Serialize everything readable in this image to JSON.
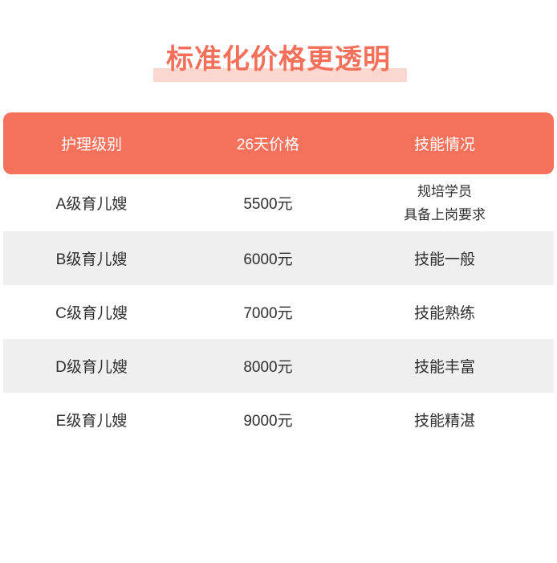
{
  "title": {
    "text": "标准化价格更透明"
  },
  "colors": {
    "accent": "#F5715C",
    "title_text": "#F4705B",
    "title_highlight": "#FAD7CF",
    "alt_row_background": "#F0EFEF",
    "header_text": "#FFFFFF",
    "body_text": "#2E2E2E"
  },
  "table": {
    "headers": {
      "level": "护理级别",
      "price": "26天价格",
      "skill": "技能情况"
    },
    "rows": [
      {
        "level": "A级育儿嫂",
        "price": "5500元",
        "skill": "规培学员",
        "skill_note": "具备上岗要求"
      },
      {
        "level": "B级育儿嫂",
        "price": "6000元",
        "skill": "技能一般"
      },
      {
        "level": "C级育儿嫂",
        "price": "7000元",
        "skill": "技能熟练"
      },
      {
        "level": "D级育儿嫂",
        "price": "8000元",
        "skill": "技能丰富"
      },
      {
        "level": "E级育儿嫂",
        "price": "9000元",
        "skill": "技能精湛"
      }
    ]
  }
}
